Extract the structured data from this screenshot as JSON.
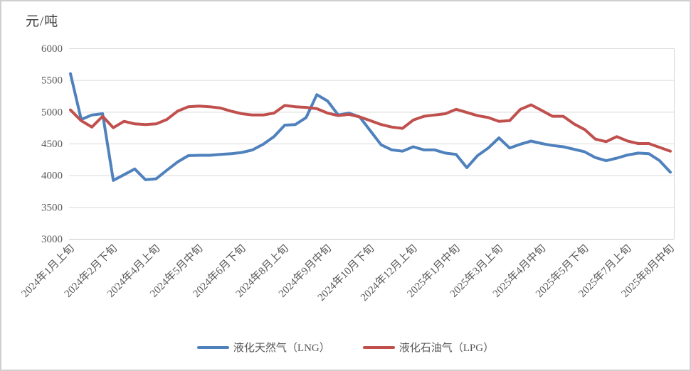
{
  "chart_title": "元/吨",
  "chart_data": {
    "type": "line",
    "title": "元/吨",
    "ylabel": "元/吨",
    "ylim": [
      3000,
      6000
    ],
    "ytick_step": 500,
    "yticks": [
      3000,
      3500,
      4000,
      4500,
      5000,
      5500,
      6000
    ],
    "grid": true,
    "legend_position": "bottom",
    "n_points": 57,
    "x_tick_indices": [
      0,
      4,
      8,
      12,
      16,
      20,
      24,
      28,
      32,
      36,
      40,
      44,
      48,
      52,
      56
    ],
    "x_tick_labels": [
      "2024年1月上旬",
      "2024年2月下旬",
      "2024年4月上旬",
      "2024年5月中旬",
      "2024年6月下旬",
      "2024年8月上旬",
      "2024年9月中旬",
      "2024年10月下旬",
      "2024年12月上旬",
      "2025年1月中旬",
      "2025年3月上旬",
      "2025年4月中旬",
      "2025年5月下旬",
      "2025年7月上旬",
      "2025年8月中旬"
    ],
    "series": [
      {
        "name": "液化天然气（LNG）",
        "color": "#4F81BD",
        "values": [
          5600,
          4880,
          4950,
          4970,
          3920,
          4010,
          4100,
          3930,
          3945,
          4080,
          4210,
          4310,
          4315,
          4315,
          4330,
          4340,
          4360,
          4400,
          4490,
          4610,
          4790,
          4800,
          4910,
          5270,
          5170,
          4950,
          4980,
          4920,
          4700,
          4480,
          4400,
          4380,
          4450,
          4400,
          4400,
          4350,
          4330,
          4120,
          4310,
          4430,
          4590,
          4430,
          4490,
          4540,
          4500,
          4470,
          4450,
          4410,
          4370,
          4280,
          4230,
          4270,
          4320,
          4350,
          4340,
          4230,
          4050
        ]
      },
      {
        "name": "液化石油气（LPG）",
        "color": "#C0504D",
        "values": [
          5030,
          4860,
          4760,
          4930,
          4750,
          4850,
          4810,
          4800,
          4810,
          4880,
          5010,
          5080,
          5090,
          5080,
          5060,
          5010,
          4970,
          4950,
          4950,
          4980,
          5100,
          5080,
          5070,
          5050,
          4980,
          4940,
          4960,
          4920,
          4860,
          4800,
          4760,
          4740,
          4870,
          4930,
          4950,
          4970,
          5040,
          4990,
          4940,
          4910,
          4850,
          4860,
          5040,
          5110,
          5020,
          4930,
          4930,
          4810,
          4720,
          4570,
          4530,
          4610,
          4540,
          4500,
          4500,
          4440,
          4380
        ]
      }
    ]
  },
  "legend": {
    "items": [
      {
        "label": "液化天然气（LNG）",
        "color": "#4F81BD"
      },
      {
        "label": "液化石油气（LPG）",
        "color": "#C0504D"
      }
    ]
  },
  "colors": {
    "line_blue": "#4F81BD",
    "line_red": "#C0504D",
    "gridline": "#D9D9D9",
    "axis_line": "#C6C6C6",
    "axis_text": "#595959",
    "title_text": "#3d3d3d",
    "frame_border": "#cfcfcf"
  }
}
